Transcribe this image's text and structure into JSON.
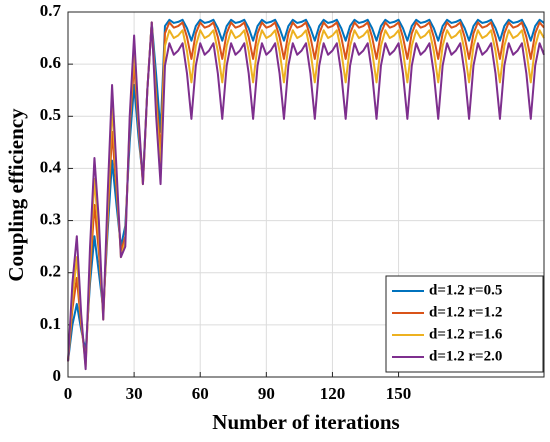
{
  "chart_data": {
    "type": "line",
    "xlabel": "Number of iterations",
    "ylabel": "Coupling efficiency",
    "x": [
      0,
      2,
      4,
      6,
      8,
      10,
      12,
      14,
      16,
      18,
      20,
      22,
      24,
      26,
      28,
      30,
      32,
      34,
      36,
      38,
      40,
      42,
      44,
      46,
      48,
      50,
      52,
      54,
      56,
      58,
      60,
      62,
      64,
      66,
      68,
      70,
      72,
      74,
      76,
      78,
      80,
      82,
      84,
      86,
      88,
      90,
      92,
      94,
      96,
      98,
      100,
      102,
      104,
      106,
      108,
      110,
      112,
      114,
      116,
      118,
      120,
      122,
      124,
      126,
      128,
      130,
      132,
      134,
      136,
      138,
      140,
      142,
      144,
      146,
      148,
      150,
      152,
      154,
      156,
      158,
      160,
      162,
      164,
      166,
      168,
      170,
      172,
      174,
      176,
      178,
      180,
      182,
      184,
      186,
      188,
      190,
      192,
      194,
      196,
      198,
      200,
      202,
      204,
      206,
      208,
      210,
      212,
      214,
      216
    ],
    "series": [
      {
        "name": "d=1.2 r=0.5",
        "color": "#0072BD",
        "values": [
          0.03,
          0.1,
          0.14,
          0.09,
          0.05,
          0.18,
          0.27,
          0.2,
          0.13,
          0.28,
          0.415,
          0.33,
          0.25,
          0.29,
          0.45,
          0.56,
          0.46,
          0.38,
          0.55,
          0.68,
          0.58,
          0.47,
          0.673,
          0.685,
          0.679,
          0.681,
          0.685,
          0.669,
          0.645,
          0.673,
          0.685,
          0.679,
          0.681,
          0.685,
          0.669,
          0.645,
          0.673,
          0.685,
          0.679,
          0.681,
          0.685,
          0.669,
          0.645,
          0.673,
          0.685,
          0.679,
          0.681,
          0.685,
          0.669,
          0.645,
          0.673,
          0.685,
          0.679,
          0.681,
          0.685,
          0.669,
          0.645,
          0.673,
          0.685,
          0.679,
          0.681,
          0.685,
          0.669,
          0.645,
          0.673,
          0.685,
          0.679,
          0.681,
          0.685,
          0.669,
          0.645,
          0.673,
          0.685,
          0.679,
          0.681,
          0.685,
          0.669,
          0.645,
          0.673,
          0.685,
          0.679,
          0.681,
          0.685,
          0.669,
          0.645,
          0.673,
          0.685,
          0.679,
          0.681,
          0.685,
          0.669,
          0.645,
          0.673,
          0.685,
          0.679,
          0.681,
          0.685,
          0.669,
          0.645,
          0.673,
          0.685,
          0.679,
          0.681,
          0.685,
          0.669,
          0.645,
          0.673,
          0.685,
          0.679
        ]
      },
      {
        "name": "d=1.2 r=1.2",
        "color": "#D95319",
        "values": [
          0.03,
          0.13,
          0.19,
          0.1,
          0.03,
          0.2,
          0.33,
          0.24,
          0.12,
          0.3,
          0.47,
          0.36,
          0.24,
          0.27,
          0.48,
          0.6,
          0.48,
          0.37,
          0.55,
          0.68,
          0.54,
          0.43,
          0.659,
          0.68,
          0.67,
          0.673,
          0.68,
          0.652,
          0.61,
          0.659,
          0.68,
          0.67,
          0.673,
          0.68,
          0.652,
          0.61,
          0.659,
          0.68,
          0.67,
          0.673,
          0.68,
          0.652,
          0.61,
          0.659,
          0.68,
          0.67,
          0.673,
          0.68,
          0.652,
          0.61,
          0.659,
          0.68,
          0.67,
          0.673,
          0.68,
          0.652,
          0.61,
          0.659,
          0.68,
          0.67,
          0.673,
          0.68,
          0.652,
          0.61,
          0.659,
          0.68,
          0.67,
          0.673,
          0.68,
          0.652,
          0.61,
          0.659,
          0.68,
          0.67,
          0.673,
          0.68,
          0.652,
          0.61,
          0.659,
          0.68,
          0.67,
          0.673,
          0.68,
          0.652,
          0.61,
          0.659,
          0.68,
          0.67,
          0.673,
          0.68,
          0.652,
          0.61,
          0.659,
          0.68,
          0.67,
          0.673,
          0.68,
          0.652,
          0.61,
          0.659,
          0.68,
          0.67,
          0.673,
          0.68,
          0.652,
          0.61,
          0.659,
          0.68,
          0.67
        ]
      },
      {
        "name": "d=1.2 r=1.6",
        "color": "#EDB120",
        "values": [
          0.03,
          0.15,
          0.23,
          0.11,
          0.02,
          0.22,
          0.38,
          0.27,
          0.11,
          0.32,
          0.52,
          0.38,
          0.23,
          0.26,
          0.49,
          0.63,
          0.49,
          0.37,
          0.55,
          0.68,
          0.52,
          0.4,
          0.635,
          0.665,
          0.65,
          0.655,
          0.665,
          0.625,
          0.565,
          0.635,
          0.665,
          0.65,
          0.655,
          0.665,
          0.625,
          0.565,
          0.635,
          0.665,
          0.65,
          0.655,
          0.665,
          0.625,
          0.565,
          0.635,
          0.665,
          0.65,
          0.655,
          0.665,
          0.625,
          0.565,
          0.635,
          0.665,
          0.65,
          0.655,
          0.665,
          0.625,
          0.565,
          0.635,
          0.665,
          0.65,
          0.655,
          0.665,
          0.625,
          0.565,
          0.635,
          0.665,
          0.65,
          0.655,
          0.665,
          0.625,
          0.565,
          0.635,
          0.665,
          0.65,
          0.655,
          0.665,
          0.625,
          0.565,
          0.635,
          0.665,
          0.65,
          0.655,
          0.665,
          0.625,
          0.565,
          0.635,
          0.665,
          0.65,
          0.655,
          0.665,
          0.625,
          0.565,
          0.635,
          0.665,
          0.65,
          0.655,
          0.665,
          0.625,
          0.565,
          0.635,
          0.665,
          0.65,
          0.655,
          0.665,
          0.625,
          0.565,
          0.635,
          0.665,
          0.65
        ]
      },
      {
        "name": "d=1.2 r=2.0",
        "color": "#7E2F8E",
        "values": [
          0.03,
          0.18,
          0.27,
          0.12,
          0.015,
          0.25,
          0.42,
          0.3,
          0.11,
          0.35,
          0.56,
          0.4,
          0.23,
          0.25,
          0.5,
          0.655,
          0.5,
          0.37,
          0.55,
          0.68,
          0.5,
          0.37,
          0.597,
          0.64,
          0.618,
          0.626,
          0.64,
          0.582,
          0.495,
          0.597,
          0.64,
          0.618,
          0.626,
          0.64,
          0.582,
          0.495,
          0.597,
          0.64,
          0.618,
          0.626,
          0.64,
          0.582,
          0.495,
          0.597,
          0.64,
          0.618,
          0.626,
          0.64,
          0.582,
          0.495,
          0.597,
          0.64,
          0.618,
          0.626,
          0.64,
          0.582,
          0.495,
          0.597,
          0.64,
          0.618,
          0.626,
          0.64,
          0.582,
          0.495,
          0.597,
          0.64,
          0.618,
          0.626,
          0.64,
          0.582,
          0.495,
          0.597,
          0.64,
          0.618,
          0.626,
          0.64,
          0.582,
          0.495,
          0.597,
          0.64,
          0.618,
          0.626,
          0.64,
          0.582,
          0.495,
          0.597,
          0.64,
          0.618,
          0.626,
          0.64,
          0.582,
          0.495,
          0.597,
          0.64,
          0.618,
          0.626,
          0.64,
          0.582,
          0.495,
          0.597,
          0.64,
          0.618,
          0.626,
          0.64,
          0.582,
          0.495,
          0.597,
          0.64,
          0.618
        ]
      }
    ],
    "xlim": [
      0,
      216
    ],
    "xticks": [
      0,
      30,
      60,
      90,
      120,
      150
    ],
    "ylim": [
      0,
      0.7
    ],
    "yticks": [
      0,
      0.1,
      0.2,
      0.3,
      0.4,
      0.5,
      0.6,
      0.7
    ],
    "grid": true,
    "legend": "lower right"
  }
}
